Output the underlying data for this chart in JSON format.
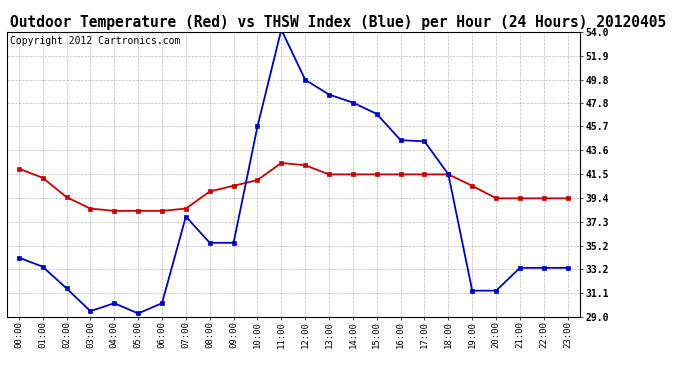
{
  "title": "Outdoor Temperature (Red) vs THSW Index (Blue) per Hour (24 Hours) 20120405",
  "copyright": "Copyright 2012 Cartronics.com",
  "hours": [
    "00:00",
    "01:00",
    "02:00",
    "03:00",
    "04:00",
    "05:00",
    "06:00",
    "07:00",
    "08:00",
    "09:00",
    "10:00",
    "11:00",
    "12:00",
    "13:00",
    "14:00",
    "15:00",
    "16:00",
    "17:00",
    "18:00",
    "19:00",
    "20:00",
    "21:00",
    "22:00",
    "23:00"
  ],
  "red_data": [
    42.0,
    41.2,
    39.5,
    38.5,
    38.3,
    38.3,
    38.3,
    38.5,
    40.0,
    40.5,
    41.0,
    42.5,
    42.3,
    41.5,
    41.5,
    41.5,
    41.5,
    41.5,
    41.5,
    40.5,
    39.4,
    39.4,
    39.4,
    39.4
  ],
  "blue_data": [
    34.2,
    33.4,
    31.5,
    29.5,
    30.2,
    29.3,
    30.2,
    37.8,
    35.5,
    35.5,
    45.7,
    54.2,
    49.8,
    48.5,
    47.8,
    46.8,
    44.5,
    44.4,
    41.5,
    31.3,
    31.3,
    33.3,
    33.3,
    33.3
  ],
  "ylim": [
    29.0,
    54.0
  ],
  "yticks": [
    29.0,
    31.1,
    33.2,
    35.2,
    37.3,
    39.4,
    41.5,
    43.6,
    45.7,
    47.8,
    49.8,
    51.9,
    54.0
  ],
  "red_color": "#cc0000",
  "blue_color": "#0000cc",
  "bg_color": "#ffffff",
  "grid_color": "#aaaaaa",
  "title_fontsize": 10.5,
  "copyright_fontsize": 7.0
}
